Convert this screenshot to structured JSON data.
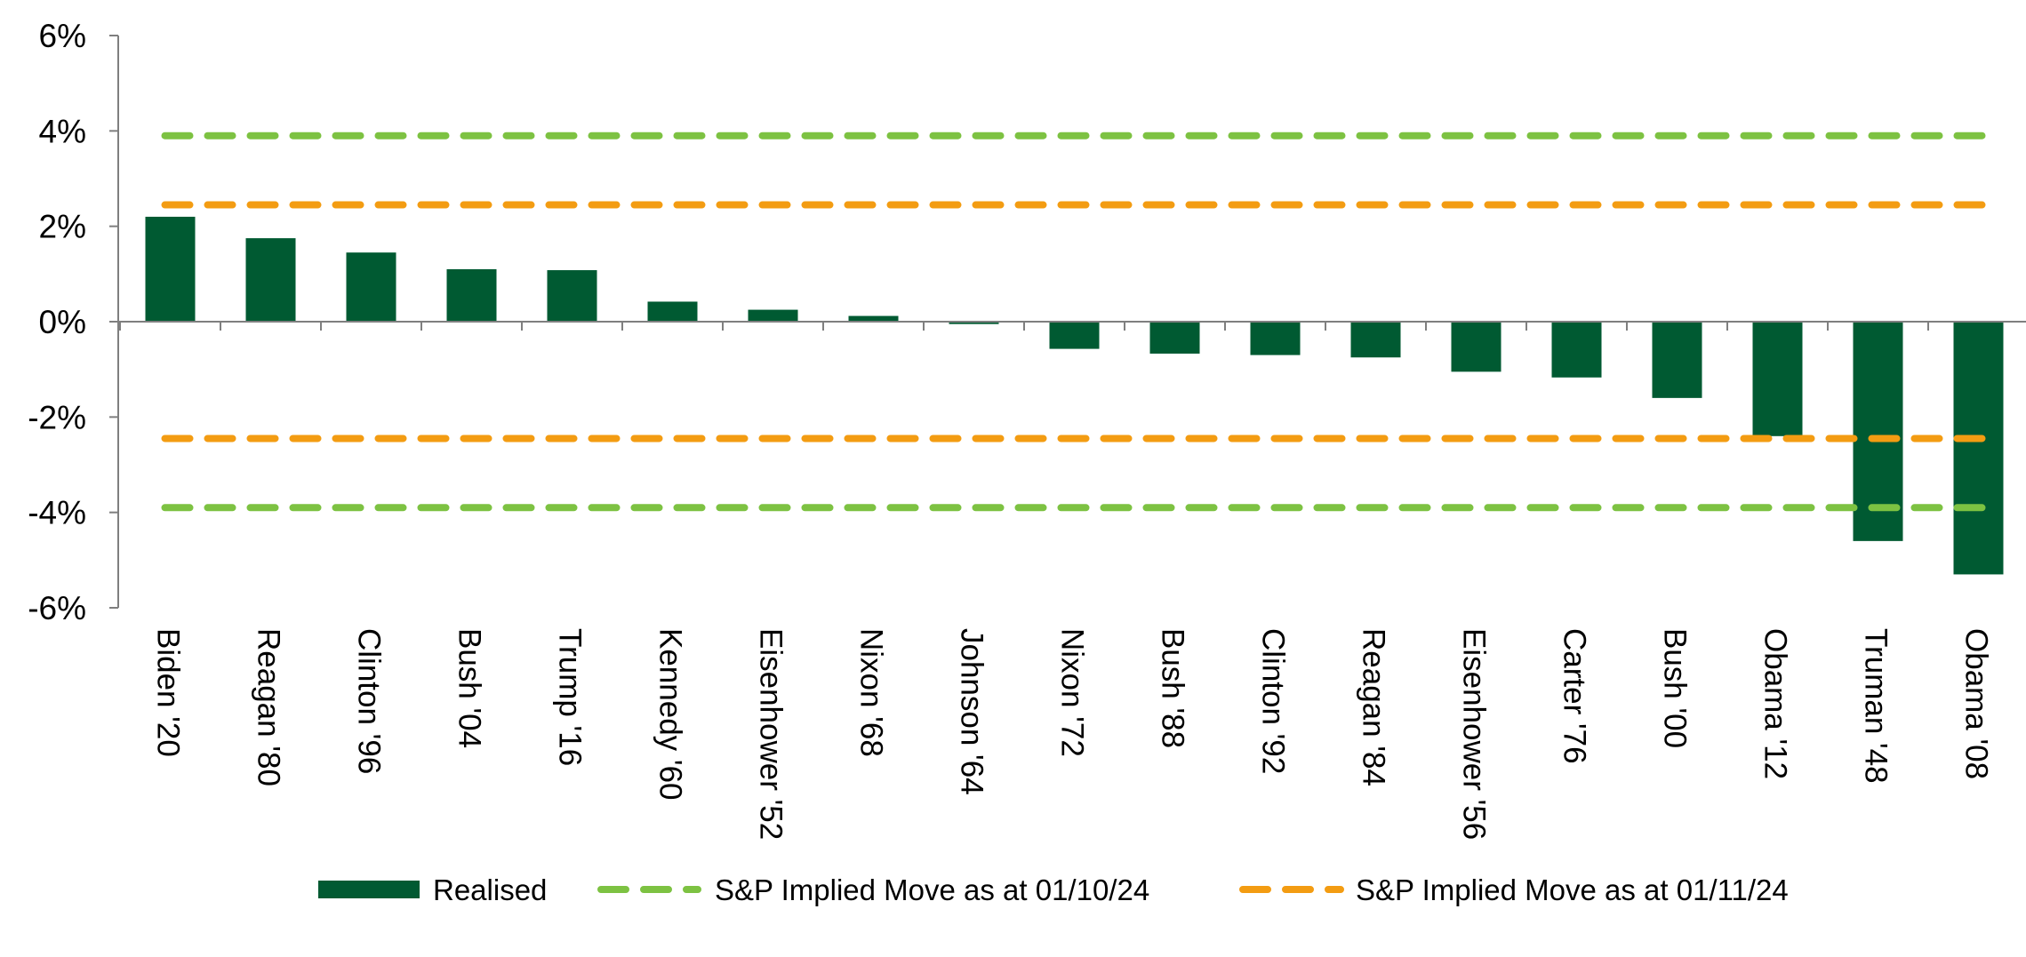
{
  "chart_data": {
    "type": "bar",
    "categories": [
      "Biden  '20",
      "Reagan  '80",
      "Clinton  '96",
      "Bush  '04",
      "Trump '16",
      "Kennedy  '60",
      "Eisenhower  '52",
      "Nixon  '68",
      "Johnson '64",
      "Nixon  '72",
      "Bush  '88",
      "Clinton  '92",
      "Reagan  '84",
      "Eisenhower  '56",
      "Carter  '76",
      "Bush  '00",
      "Obama  '12",
      "Truman  '48",
      "Obama  '08"
    ],
    "series": [
      {
        "name": "Realised",
        "values": [
          2.2,
          1.75,
          1.45,
          1.1,
          1.08,
          0.42,
          0.25,
          0.12,
          -0.05,
          -0.57,
          -0.67,
          -0.7,
          -0.75,
          -1.05,
          -1.17,
          -1.6,
          -2.4,
          -4.6,
          -5.3
        ],
        "color": "#005a32"
      }
    ],
    "reference_lines": [
      {
        "name": "S&P Implied Move as at 01/10/24",
        "values": [
          3.9,
          -3.9
        ],
        "color": "#7dc242",
        "style": "dashed"
      },
      {
        "name": "S&P Implied Move as at 01/11/24",
        "values": [
          2.45,
          -2.45
        ],
        "color": "#f39c12",
        "style": "dashed"
      }
    ],
    "y_ticks": [
      "6%",
      "4%",
      "2%",
      "0%",
      "-2%",
      "-4%",
      "-6%"
    ],
    "y_tick_values": [
      6,
      4,
      2,
      0,
      -2,
      -4,
      -6
    ],
    "ylim": [
      -6,
      6
    ],
    "title": "",
    "xlabel": "",
    "ylabel": "",
    "grid": false,
    "legend_position": "bottom"
  },
  "legend": {
    "items": [
      {
        "label": "Realised",
        "type": "bar",
        "color": "#005a32"
      },
      {
        "label": "S&P Implied Move as at 01/10/24",
        "type": "dashed",
        "color": "#7dc242"
      },
      {
        "label": "S&P Implied Move as at 01/11/24",
        "type": "dashed",
        "color": "#f39c12"
      }
    ]
  }
}
